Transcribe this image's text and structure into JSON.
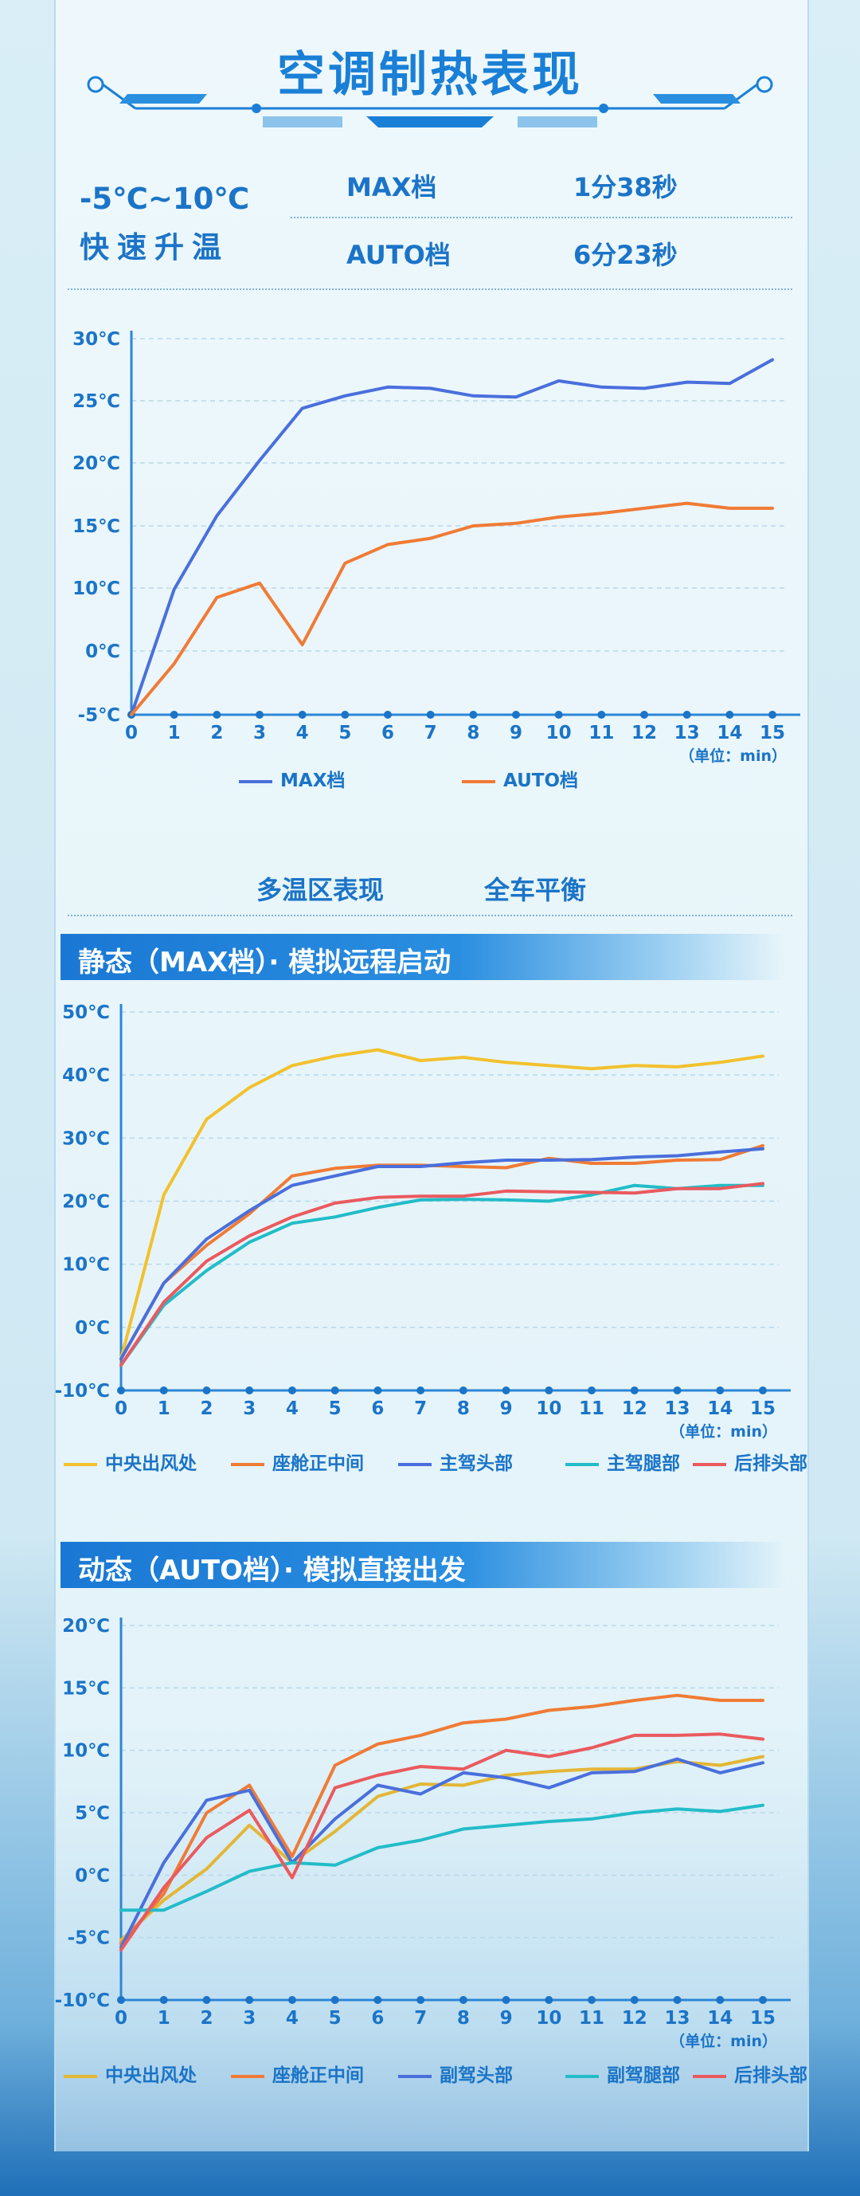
{
  "header": {
    "title": "空调制热表现"
  },
  "summary": {
    "range_line1": "-5℃~10℃",
    "range_line2": "快速升温",
    "row1_label": "MAX档",
    "row1_value": "1分38秒",
    "row2_label": "AUTO档",
    "row2_value": "6分23秒"
  },
  "section2": {
    "title": "多温区表现",
    "subtitle": "全车平衡"
  },
  "chart_data": [
    {
      "type": "line",
      "unit_label": "（单位：min）",
      "x": [
        0,
        1,
        2,
        3,
        4,
        5,
        6,
        7,
        8,
        9,
        10,
        11,
        12,
        13,
        14,
        15
      ],
      "yticks": [
        "30℃",
        "25℃",
        "20℃",
        "15℃",
        "10℃",
        "0℃",
        "-5℃"
      ],
      "legend_position": "bottom",
      "series": [
        {
          "name": "MAX档",
          "color": "#4a6fdc",
          "values": [
            -5,
            9.8,
            15.8,
            20.2,
            24.4,
            25.4,
            26.1,
            26.0,
            25.4,
            25.3,
            26.6,
            26.1,
            26.0,
            26.5,
            26.4,
            28.3
          ]
        },
        {
          "name": "AUTO档",
          "color": "#f07b35",
          "values": [
            -5,
            -1.0,
            8.5,
            10.4,
            1.0,
            12.0,
            13.5,
            14.0,
            15.0,
            15.2,
            15.7,
            16.0,
            16.4,
            16.8,
            16.4,
            16.4
          ]
        }
      ]
    },
    {
      "type": "line",
      "banner": "静态（MAX档）· 模拟远程启动",
      "unit_label": "（单位：min）",
      "x": [
        0,
        1,
        2,
        3,
        4,
        5,
        6,
        7,
        8,
        9,
        10,
        11,
        12,
        13,
        14,
        15
      ],
      "yticks": [
        "50℃",
        "40℃",
        "30℃",
        "20℃",
        "10℃",
        "0℃",
        "-10℃"
      ],
      "ylim": [
        -10,
        50
      ],
      "legend_position": "bottom",
      "series": [
        {
          "name": "中央出风处",
          "color": "#f2c12e",
          "values": [
            -5,
            21,
            33,
            38,
            41.5,
            43,
            44,
            42.3,
            42.8,
            42.0,
            41.5,
            41.0,
            41.5,
            41.3,
            42.0,
            43.0
          ]
        },
        {
          "name": "座舱正中间",
          "color": "#f07b35",
          "values": [
            -5,
            7,
            13,
            18,
            24,
            25.2,
            25.7,
            25.7,
            25.5,
            25.3,
            26.8,
            26.0,
            26.0,
            26.5,
            26.6,
            28.8
          ]
        },
        {
          "name": "主驾头部",
          "color": "#4a6fdc",
          "values": [
            -5,
            7,
            14,
            18.5,
            22.5,
            24.0,
            25.5,
            25.5,
            26.1,
            26.5,
            26.5,
            26.6,
            27.0,
            27.2,
            27.8,
            28.3
          ]
        },
        {
          "name": "主驾腿部",
          "color": "#22bcc8",
          "values": [
            -6,
            3.5,
            9,
            13.5,
            16.5,
            17.5,
            19,
            20.2,
            20.3,
            20.2,
            20.0,
            21.0,
            22.5,
            22.0,
            22.5,
            22.5
          ]
        },
        {
          "name": "后排头部",
          "color": "#ea5a5e",
          "values": [
            -6,
            4,
            10.5,
            14.5,
            17.5,
            19.7,
            20.6,
            20.8,
            20.8,
            21.6,
            21.5,
            21.4,
            21.3,
            22.0,
            22.0,
            22.8
          ]
        }
      ]
    },
    {
      "type": "line",
      "banner": "动态（AUTO档）· 模拟直接出发",
      "unit_label": "（单位：min）",
      "x": [
        0,
        1,
        2,
        3,
        4,
        5,
        6,
        7,
        8,
        9,
        10,
        11,
        12,
        13,
        14,
        15
      ],
      "yticks": [
        "20℃",
        "15℃",
        "10℃",
        "5℃",
        "0℃",
        "-5℃",
        "-10℃"
      ],
      "ylim": [
        -10,
        20
      ],
      "legend_position": "bottom",
      "series": [
        {
          "name": "中央出风处",
          "color": "#e3b635",
          "values": [
            -5.2,
            -2.0,
            0.5,
            4.0,
            1.0,
            3.5,
            6.3,
            7.3,
            7.2,
            8.0,
            8.3,
            8.5,
            8.5,
            9.1,
            8.8,
            9.5
          ]
        },
        {
          "name": "座舱正中间",
          "color": "#f07b35",
          "values": [
            -5.5,
            -1.5,
            5.0,
            7.2,
            1.5,
            8.8,
            10.5,
            11.2,
            12.2,
            12.5,
            13.2,
            13.5,
            14.0,
            14.4,
            14.0,
            14.0
          ]
        },
        {
          "name": "副驾头部",
          "color": "#4a6fdc",
          "values": [
            -5.8,
            1.0,
            6.0,
            6.8,
            1.0,
            4.5,
            7.2,
            6.5,
            8.2,
            7.8,
            7.0,
            8.2,
            8.3,
            9.3,
            8.2,
            9.0
          ]
        },
        {
          "name": "副驾腿部",
          "color": "#22bcc8",
          "values": [
            -2.8,
            -2.8,
            -1.3,
            0.3,
            1.0,
            0.8,
            2.2,
            2.8,
            3.7,
            4.0,
            4.3,
            4.5,
            5.0,
            5.3,
            5.1,
            5.6
          ]
        },
        {
          "name": "后排头部",
          "color": "#ea5a5e",
          "values": [
            -6,
            -1.0,
            3.0,
            5.2,
            -0.2,
            7.0,
            8.0,
            8.7,
            8.5,
            10.0,
            9.5,
            10.2,
            11.2,
            11.2,
            11.3,
            10.9
          ]
        }
      ]
    }
  ]
}
